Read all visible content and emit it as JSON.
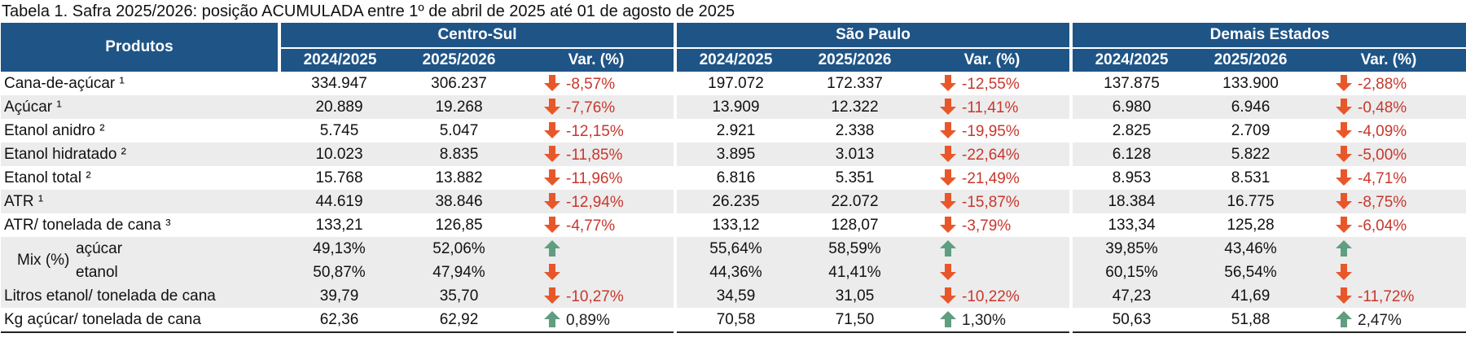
{
  "caption": "Tabela 1. Safra 2025/2026: posição ACUMULADA entre 1º de abril de 2025 até 01 de agosto de 2025",
  "header": {
    "products": "Produtos",
    "groups": [
      "Centro-Sul",
      "São Paulo",
      "Demais Estados"
    ],
    "subcols": [
      "2024/2025",
      "2025/2026",
      "Var. (%)"
    ]
  },
  "colors": {
    "header_bg": "#1f5486",
    "down_arrow": "#e8572a",
    "up_arrow": "#5f9e80",
    "negative_text": "#c8372d"
  },
  "rows": [
    {
      "label": "Cana-de-açúcar ¹",
      "cs": [
        "334.947",
        "306.237",
        "-8,57%",
        "down"
      ],
      "sp": [
        "197.072",
        "172.337",
        "-12,55%",
        "down"
      ],
      "de": [
        "137.875",
        "133.900",
        "-2,88%",
        "down"
      ]
    },
    {
      "label": "Açúcar ¹",
      "cs": [
        "20.889",
        "19.268",
        "-7,76%",
        "down"
      ],
      "sp": [
        "13.909",
        "12.322",
        "-11,41%",
        "down"
      ],
      "de": [
        "6.980",
        "6.946",
        "-0,48%",
        "down"
      ]
    },
    {
      "label": "Etanol anidro ²",
      "cs": [
        "5.745",
        "5.047",
        "-12,15%",
        "down"
      ],
      "sp": [
        "2.921",
        "2.338",
        "-19,95%",
        "down"
      ],
      "de": [
        "2.825",
        "2.709",
        "-4,09%",
        "down"
      ]
    },
    {
      "label": "Etanol hidratado ²",
      "cs": [
        "10.023",
        "8.835",
        "-11,85%",
        "down"
      ],
      "sp": [
        "3.895",
        "3.013",
        "-22,64%",
        "down"
      ],
      "de": [
        "6.128",
        "5.822",
        "-5,00%",
        "down"
      ]
    },
    {
      "label": "Etanol total ²",
      "cs": [
        "15.768",
        "13.882",
        "-11,96%",
        "down"
      ],
      "sp": [
        "6.816",
        "5.351",
        "-21,49%",
        "down"
      ],
      "de": [
        "8.953",
        "8.531",
        "-4,71%",
        "down"
      ]
    },
    {
      "label": "ATR ¹",
      "cs": [
        "44.619",
        "38.846",
        "-12,94%",
        "down"
      ],
      "sp": [
        "26.235",
        "22.072",
        "-15,87%",
        "down"
      ],
      "de": [
        "18.384",
        "16.775",
        "-8,75%",
        "down"
      ]
    },
    {
      "label": "ATR/ tonelada de cana ³",
      "cs": [
        "133,21",
        "126,85",
        "-4,77%",
        "down"
      ],
      "sp": [
        "133,12",
        "128,07",
        "-3,79%",
        "down"
      ],
      "de": [
        "133,34",
        "125,28",
        "-6,04%",
        "down"
      ]
    }
  ],
  "mix": {
    "label": "Mix (%)",
    "sub": [
      "açúcar",
      "etanol"
    ],
    "acucar": {
      "cs": [
        "49,13%",
        "52,06%",
        "",
        "up"
      ],
      "sp": [
        "55,64%",
        "58,59%",
        "",
        "up"
      ],
      "de": [
        "39,85%",
        "43,46%",
        "",
        "up"
      ]
    },
    "etanol": {
      "cs": [
        "50,87%",
        "47,94%",
        "",
        "down"
      ],
      "sp": [
        "44,36%",
        "41,41%",
        "",
        "down"
      ],
      "de": [
        "60,15%",
        "56,54%",
        "",
        "down"
      ]
    }
  },
  "rows_after": [
    {
      "label": "Litros etanol/ tonelada de cana",
      "cs": [
        "39,79",
        "35,70",
        "-10,27%",
        "down"
      ],
      "sp": [
        "34,59",
        "31,05",
        "-10,22%",
        "down"
      ],
      "de": [
        "47,23",
        "41,69",
        "-11,72%",
        "down"
      ]
    },
    {
      "label": "Kg açúcar/ tonelada de cana",
      "cs": [
        "62,36",
        "62,92",
        "0,89%",
        "up"
      ],
      "sp": [
        "70,58",
        "71,50",
        "1,30%",
        "up"
      ],
      "de": [
        "50,63",
        "51,88",
        "2,47%",
        "up"
      ]
    }
  ]
}
